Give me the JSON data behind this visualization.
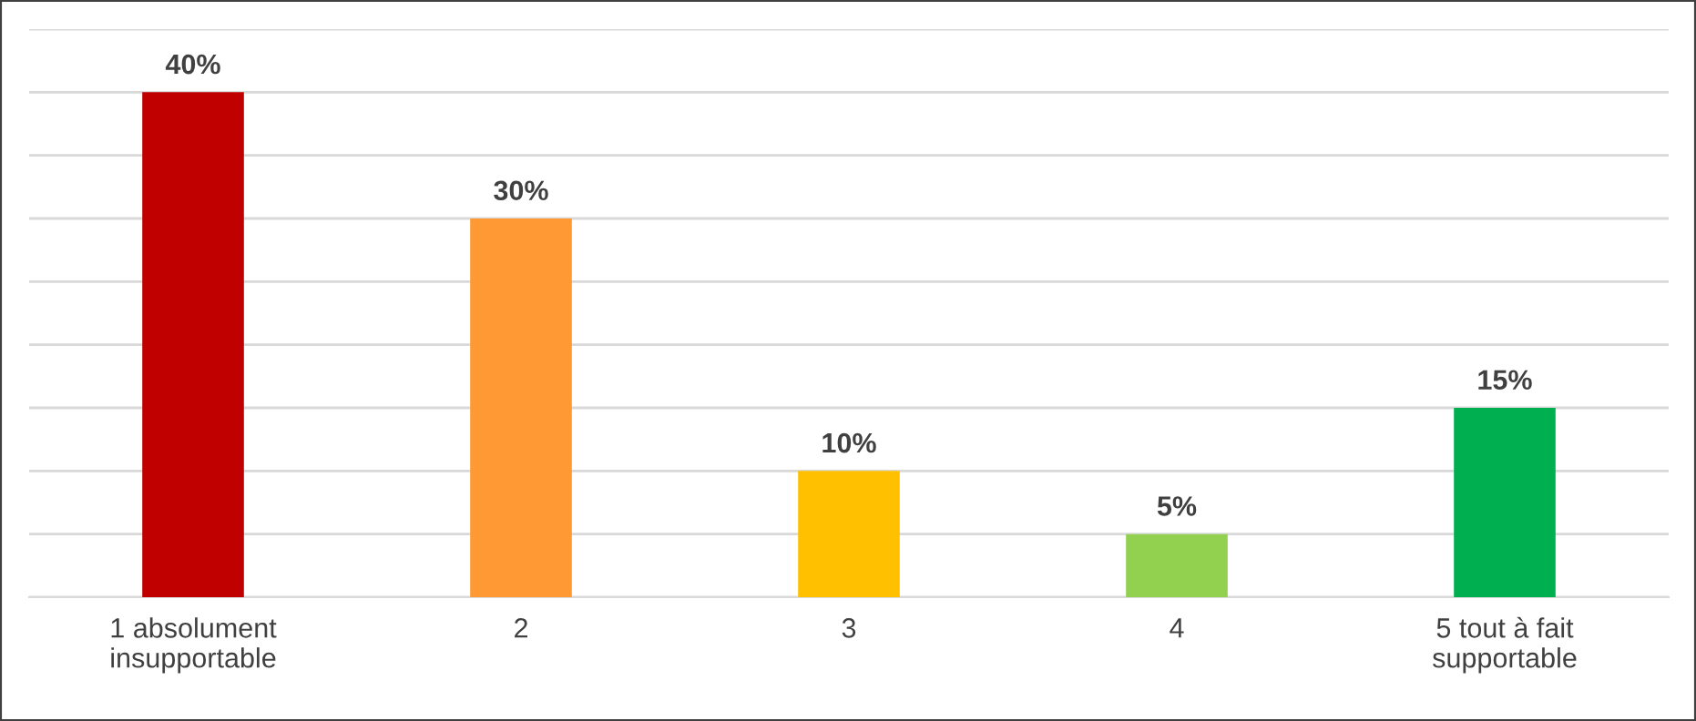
{
  "chart_data": {
    "type": "bar",
    "categories": [
      "1 absolument\ninsupportable",
      "2",
      "3",
      "4",
      "5 tout à fait\nsupportable"
    ],
    "values": [
      40,
      30,
      10,
      5,
      15
    ],
    "colors": [
      "#c00000",
      "#ff9933",
      "#ffc000",
      "#92d050",
      "#00b050"
    ],
    "value_labels": [
      "40%",
      "30%",
      "10%",
      "5%",
      "15%"
    ],
    "ylim": [
      0,
      45
    ],
    "yticks": [
      {
        "value": 0,
        "label": null
      },
      {
        "value": 5,
        "label": null
      },
      {
        "value": 10,
        "label": null
      },
      {
        "value": 15,
        "label": null
      },
      {
        "value": 20,
        "label": null
      },
      {
        "value": 25,
        "label": null
      },
      {
        "value": 30,
        "label": null
      },
      {
        "value": 35,
        "label": null
      },
      {
        "value": 40,
        "label": null
      },
      {
        "value": 45,
        "label": null
      }
    ],
    "grid": "y",
    "legend": false,
    "tick_labels": "x"
  }
}
